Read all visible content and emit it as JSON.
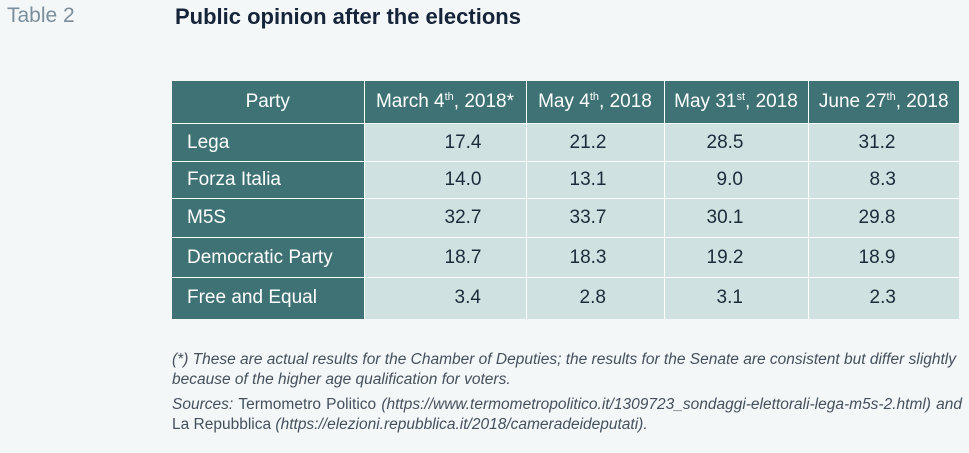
{
  "table_label": "Table 2",
  "title": "Public opinion after the elections",
  "table": {
    "header_party": "Party",
    "columns": [
      {
        "base": "March 4",
        "sup": "th",
        "rest": ", 2018*"
      },
      {
        "base": "May 4",
        "sup": "th",
        "rest": ", 2018"
      },
      {
        "base": "May 31",
        "sup": "st",
        "rest": ", 2018"
      },
      {
        "base": "June 27",
        "sup": "th",
        "rest": ", 2018"
      }
    ],
    "rows": [
      {
        "party": "Lega",
        "values": [
          "17.4",
          "21.2",
          "28.5",
          "31.2"
        ]
      },
      {
        "party": "Forza Italia",
        "values": [
          "14.0",
          "13.1",
          "9.0",
          "8.3"
        ]
      },
      {
        "party": "M5S",
        "values": [
          "32.7",
          "33.7",
          "30.1",
          "29.8"
        ]
      },
      {
        "party": "Democratic Party",
        "values": [
          "18.7",
          "18.3",
          "19.2",
          "18.9"
        ]
      },
      {
        "party": "Free and Equal",
        "values": [
          "3.4",
          "2.8",
          "3.1",
          "2.3"
        ]
      }
    ]
  },
  "notes": {
    "footnote": "(*) These are actual results for the Chamber of Deputies; the results for the Senate are consistent but differ slightly because of the higher age qualification for voters.",
    "sources_prefix": "Sources:",
    "source1_name": "Termometro Politico",
    "source1_url": "(https://www.termometropolitico.it/1309723_sondaggi-elettorali-lega-m5s-2.html)",
    "and_word": "and",
    "source2_name": "La Repubblica",
    "source2_url": "(https://elezioni.repubblica.it/2018/cameradeideputati)."
  }
}
